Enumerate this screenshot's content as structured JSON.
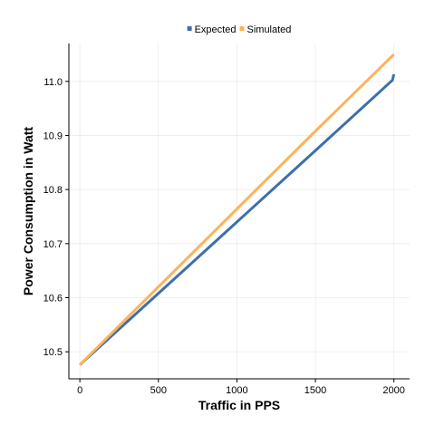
{
  "chart_data": {
    "type": "line",
    "title": "",
    "xlabel": "Traffic in PPS",
    "ylabel": "Power Consumption in Watt",
    "xlim": [
      -70,
      2100
    ],
    "ylim": [
      10.45,
      11.07
    ],
    "xticks": [
      0,
      500,
      1000,
      1500,
      2000
    ],
    "xtick_labels": [
      "0",
      "500",
      "1000",
      "1500",
      "2000"
    ],
    "yticks": [
      10.5,
      10.6,
      10.7,
      10.8,
      10.9,
      11.0
    ],
    "ytick_labels": [
      "10.5",
      "10.6",
      "10.7",
      "10.8",
      "10.9",
      "11.0"
    ],
    "grid": true,
    "legend_position": "top",
    "series": [
      {
        "name": "Expected",
        "color": "#3c6fac",
        "x": [
          0,
          500,
          1000,
          1500,
          1990,
          2000
        ],
        "y": [
          10.476,
          10.608,
          10.74,
          10.872,
          11.002,
          11.013
        ]
      },
      {
        "name": "Simulated",
        "color": "#ffb25a",
        "x": [
          0,
          500,
          1000,
          1500,
          2000
        ],
        "y": [
          10.476,
          10.62,
          10.764,
          10.908,
          11.05
        ]
      }
    ]
  }
}
